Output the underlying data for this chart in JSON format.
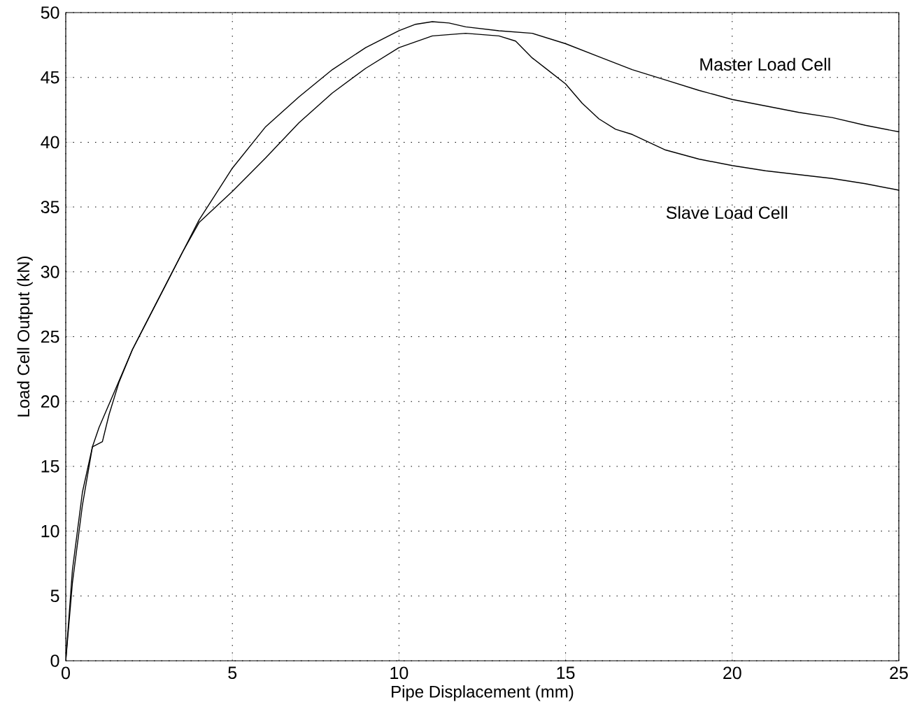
{
  "chart_data": {
    "type": "line",
    "xlabel": "Pipe Displacement (mm)",
    "ylabel": "Load Cell Output (kN)",
    "xlim": [
      0,
      25
    ],
    "ylim": [
      0,
      50
    ],
    "xticks": [
      0,
      5,
      10,
      15,
      20,
      25
    ],
    "yticks": [
      0,
      5,
      10,
      15,
      20,
      25,
      30,
      35,
      40,
      45,
      50
    ],
    "grid": true,
    "line_style": "solid",
    "series": [
      {
        "name": "Master Load Cell",
        "color": "#000000",
        "x": [
          0,
          0.2,
          0.5,
          0.8,
          1,
          1.5,
          2,
          2.5,
          3,
          3.5,
          4,
          4.5,
          5,
          6,
          7,
          8,
          9,
          10,
          10.5,
          11,
          11.5,
          12,
          13,
          14,
          15,
          16,
          17,
          18,
          19,
          20,
          21,
          22,
          23,
          24,
          25
        ],
        "values": [
          0,
          7,
          13,
          16.5,
          18,
          21,
          24,
          26.5,
          29,
          31.5,
          34,
          36,
          38,
          41.2,
          43.5,
          45.6,
          47.3,
          48.6,
          49.1,
          49.3,
          49.2,
          48.9,
          48.6,
          48.4,
          47.6,
          46.6,
          45.6,
          44.8,
          44,
          43.3,
          42.8,
          42.3,
          41.9,
          41.3,
          40.8
        ]
      },
      {
        "name": "Slave Load Cell",
        "color": "#000000",
        "x": [
          0,
          0.2,
          0.5,
          0.8,
          1.1,
          1.3,
          1.6,
          2,
          2.5,
          3,
          3.5,
          4,
          4.5,
          5,
          6,
          7,
          8,
          9,
          10,
          11,
          12,
          13,
          13.5,
          14,
          14.5,
          15,
          15.5,
          16,
          16.5,
          17,
          18,
          19,
          20,
          21,
          22,
          23,
          24,
          25
        ],
        "values": [
          0,
          6,
          12,
          16.5,
          16.9,
          19,
          21.5,
          24,
          26.5,
          29,
          31.5,
          33.8,
          35,
          36.2,
          38.8,
          41.5,
          43.8,
          45.7,
          47.3,
          48.2,
          48.4,
          48.2,
          47.8,
          46.5,
          45.5,
          44.5,
          43,
          41.8,
          41,
          40.6,
          39.4,
          38.7,
          38.2,
          37.8,
          37.5,
          37.2,
          36.8,
          36.3
        ]
      }
    ]
  }
}
